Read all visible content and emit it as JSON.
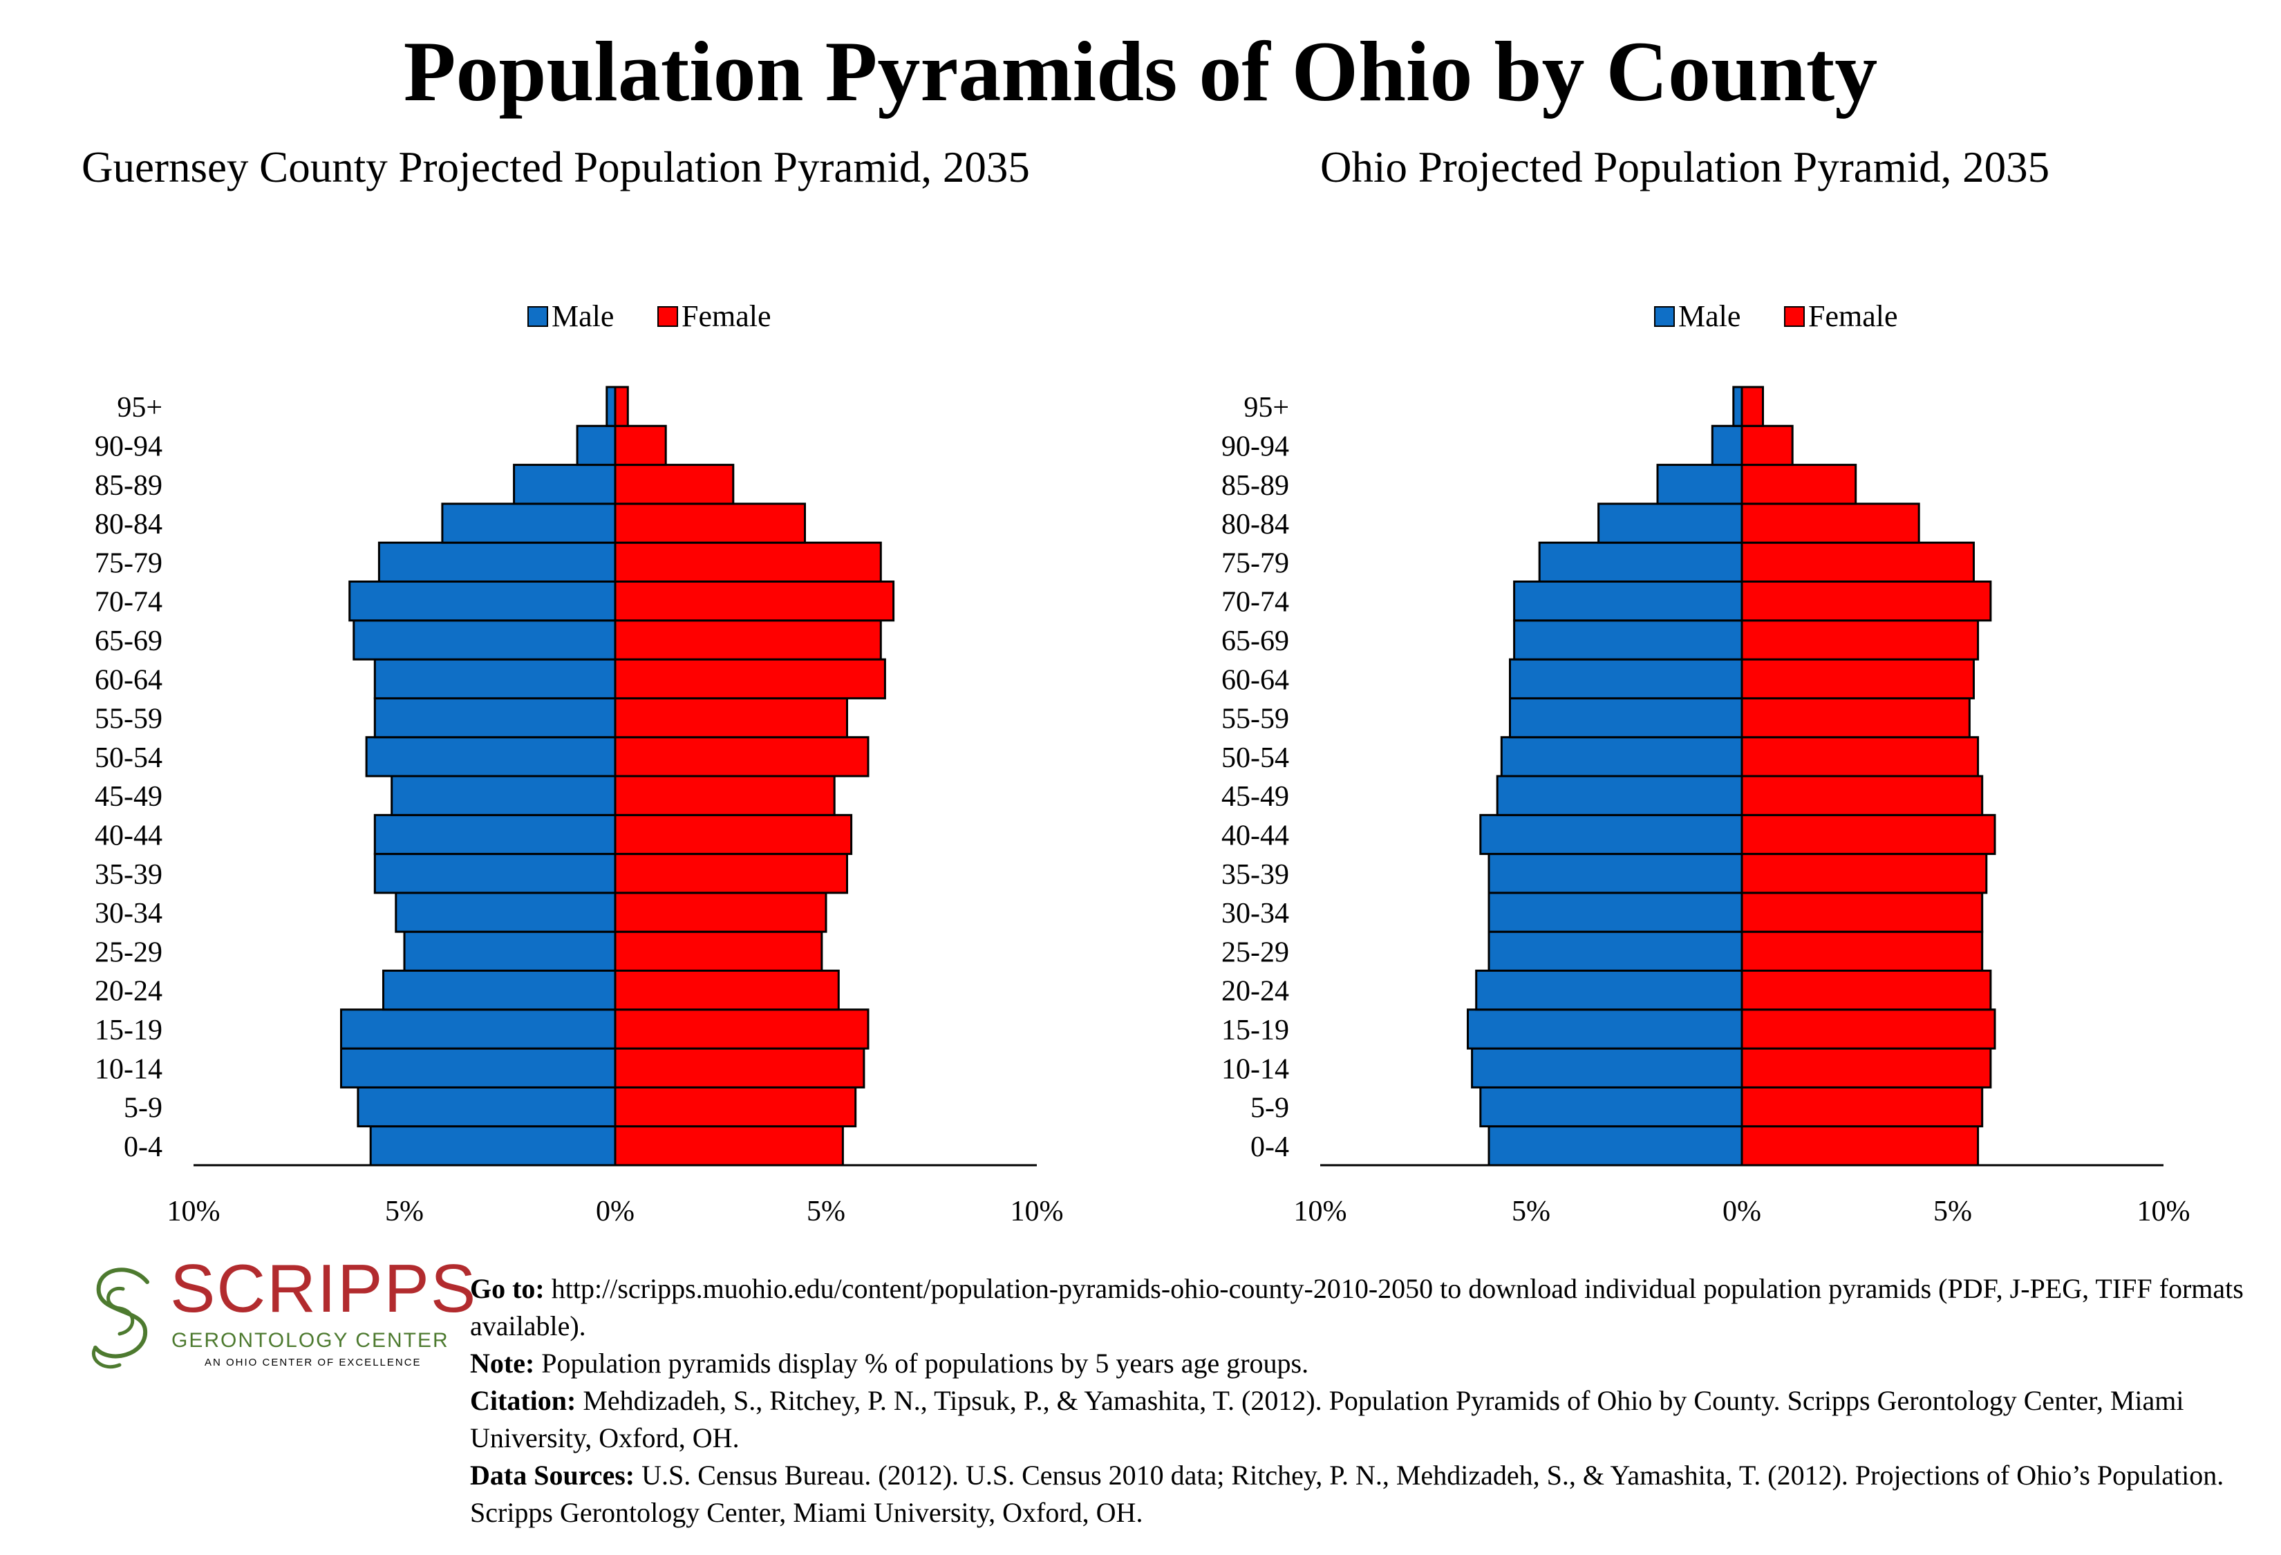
{
  "title": "Population Pyramids of Ohio by County",
  "chart_data": [
    {
      "type": "bar",
      "title": "Guernsey County Projected Population Pyramid, 2035",
      "orientation": "horizontal-pyramid",
      "categories": [
        "0-4",
        "5-9",
        "10-14",
        "15-19",
        "20-24",
        "25-29",
        "30-34",
        "35-39",
        "40-44",
        "45-49",
        "50-54",
        "55-59",
        "60-64",
        "65-69",
        "70-74",
        "75-79",
        "80-84",
        "85-89",
        "90-94",
        "95+"
      ],
      "series": [
        {
          "name": "Male",
          "color": "#0f6fc6",
          "values": [
            5.8,
            6.1,
            6.5,
            6.5,
            5.5,
            5.0,
            5.2,
            5.7,
            5.7,
            5.3,
            5.9,
            5.7,
            5.7,
            6.2,
            6.3,
            5.6,
            4.1,
            2.4,
            0.9,
            0.2
          ]
        },
        {
          "name": "Female",
          "color": "#ff0000",
          "values": [
            5.4,
            5.7,
            5.9,
            6.0,
            5.3,
            4.9,
            5.0,
            5.5,
            5.6,
            5.2,
            6.0,
            5.5,
            6.4,
            6.3,
            6.6,
            6.3,
            4.5,
            2.8,
            1.2,
            0.3
          ]
        }
      ],
      "xlim": [
        -10,
        10
      ],
      "tick_labels": [
        "10%",
        "5%",
        "0%",
        "5%",
        "10%"
      ],
      "legend": "top-center",
      "grid": false
    },
    {
      "type": "bar",
      "title": "Ohio Projected Population Pyramid, 2035",
      "orientation": "horizontal-pyramid",
      "categories": [
        "0-4",
        "5-9",
        "10-14",
        "15-19",
        "20-24",
        "25-29",
        "30-34",
        "35-39",
        "40-44",
        "45-49",
        "50-54",
        "55-59",
        "60-64",
        "65-69",
        "70-74",
        "75-79",
        "80-84",
        "85-89",
        "90-94",
        "95+"
      ],
      "series": [
        {
          "name": "Male",
          "color": "#0f6fc6",
          "values": [
            6.0,
            6.2,
            6.4,
            6.5,
            6.3,
            6.0,
            6.0,
            6.0,
            6.2,
            5.8,
            5.7,
            5.5,
            5.5,
            5.4,
            5.4,
            4.8,
            3.4,
            2.0,
            0.7,
            0.2
          ]
        },
        {
          "name": "Female",
          "color": "#ff0000",
          "values": [
            5.6,
            5.7,
            5.9,
            6.0,
            5.9,
            5.7,
            5.7,
            5.8,
            6.0,
            5.7,
            5.6,
            5.4,
            5.5,
            5.6,
            5.9,
            5.5,
            4.2,
            2.7,
            1.2,
            0.5
          ]
        }
      ],
      "xlim": [
        -10,
        10
      ],
      "tick_labels": [
        "10%",
        "5%",
        "0%",
        "5%",
        "10%"
      ],
      "legend": "top-center",
      "grid": false
    }
  ],
  "logo": {
    "wordmark": "SCRIPPS",
    "subtitle": "GERONTOLOGY CENTER",
    "tagline": "AN OHIO CENTER OF EXCELLENCE",
    "red": "#b22b2e",
    "green": "#4d7a2f"
  },
  "notes": {
    "goto_label": "Go to:",
    "goto_text": " http://scripps.muohio.edu/content/population-pyramids-ohio-county-2010-2050 to download individual population pyramids (PDF, J-PEG, TIFF formats available).",
    "note_label": "Note:",
    "note_text": " Population pyramids display % of populations by 5 years age groups.",
    "citation_label": "Citation:",
    "citation_text": " Mehdizadeh, S., Ritchey, P. N., Tipsuk, P., & Yamashita, T. (2012). Population Pyramids of Ohio by County. Scripps Gerontology Center, Miami University, Oxford, OH.",
    "sources_label": "Data Sources:",
    "sources_text": " U.S. Census Bureau. (2012). U.S. Census 2010 data; Ritchey, P. N., Mehdizadeh, S., & Yamashita, T. (2012). Projections of Ohio’s Population. Scripps Gerontology Center, Miami University, Oxford, OH."
  }
}
